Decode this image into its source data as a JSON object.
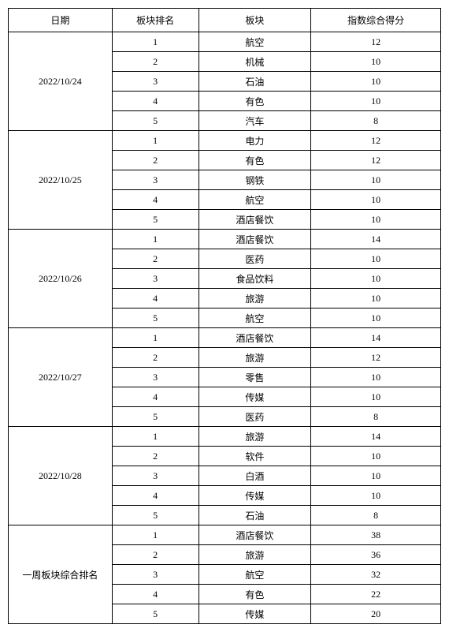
{
  "headers": [
    "日期",
    "板块排名",
    "板块",
    "指数综合得分"
  ],
  "groups": [
    {
      "date": "2022/10/24",
      "rows": [
        {
          "rank": "1",
          "sector": "航空",
          "score": "12"
        },
        {
          "rank": "2",
          "sector": "机械",
          "score": "10"
        },
        {
          "rank": "3",
          "sector": "石油",
          "score": "10"
        },
        {
          "rank": "4",
          "sector": "有色",
          "score": "10"
        },
        {
          "rank": "5",
          "sector": "汽车",
          "score": "8"
        }
      ]
    },
    {
      "date": "2022/10/25",
      "rows": [
        {
          "rank": "1",
          "sector": "电力",
          "score": "12"
        },
        {
          "rank": "2",
          "sector": "有色",
          "score": "12"
        },
        {
          "rank": "3",
          "sector": "钢铁",
          "score": "10"
        },
        {
          "rank": "4",
          "sector": "航空",
          "score": "10"
        },
        {
          "rank": "5",
          "sector": "酒店餐饮",
          "score": "10"
        }
      ]
    },
    {
      "date": "2022/10/26",
      "rows": [
        {
          "rank": "1",
          "sector": "酒店餐饮",
          "score": "14"
        },
        {
          "rank": "2",
          "sector": "医药",
          "score": "10"
        },
        {
          "rank": "3",
          "sector": "食品饮料",
          "score": "10"
        },
        {
          "rank": "4",
          "sector": "旅游",
          "score": "10"
        },
        {
          "rank": "5",
          "sector": "航空",
          "score": "10"
        }
      ]
    },
    {
      "date": "2022/10/27",
      "rows": [
        {
          "rank": "1",
          "sector": "酒店餐饮",
          "score": "14"
        },
        {
          "rank": "2",
          "sector": "旅游",
          "score": "12"
        },
        {
          "rank": "3",
          "sector": "零售",
          "score": "10"
        },
        {
          "rank": "4",
          "sector": "传媒",
          "score": "10"
        },
        {
          "rank": "5",
          "sector": "医药",
          "score": "8"
        }
      ]
    },
    {
      "date": "2022/10/28",
      "rows": [
        {
          "rank": "1",
          "sector": "旅游",
          "score": "14"
        },
        {
          "rank": "2",
          "sector": "软件",
          "score": "10"
        },
        {
          "rank": "3",
          "sector": "白酒",
          "score": "10"
        },
        {
          "rank": "4",
          "sector": "传媒",
          "score": "10"
        },
        {
          "rank": "5",
          "sector": "石油",
          "score": "8"
        }
      ]
    },
    {
      "date": "一周板块综合排名",
      "rows": [
        {
          "rank": "1",
          "sector": "酒店餐饮",
          "score": "38"
        },
        {
          "rank": "2",
          "sector": "旅游",
          "score": "36"
        },
        {
          "rank": "3",
          "sector": "航空",
          "score": "32"
        },
        {
          "rank": "4",
          "sector": "有色",
          "score": "22"
        },
        {
          "rank": "5",
          "sector": "传媒",
          "score": "20"
        }
      ]
    }
  ]
}
